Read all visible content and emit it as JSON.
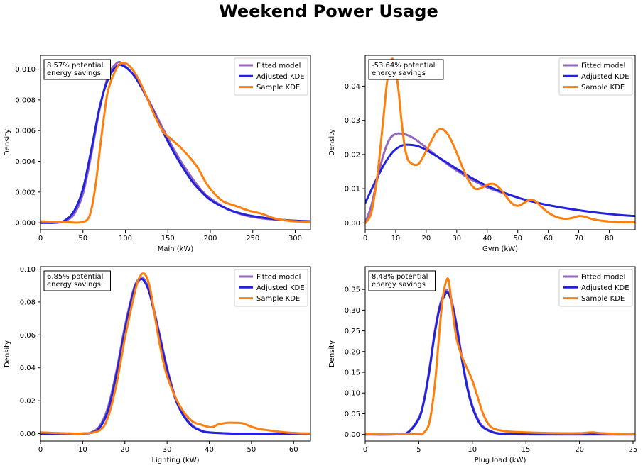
{
  "figure": {
    "title": "Weekend Power Usage"
  },
  "colors": {
    "fitted": "#9467bd",
    "adjusted": "#2222dd",
    "sample": "#ff7f0e"
  },
  "chart_data": [
    {
      "type": "line",
      "xlabel": "Main (kW)",
      "ylabel": "Density",
      "xlim": [
        0,
        318
      ],
      "ylim": [
        -0.00045,
        0.0109
      ],
      "xticks": [
        0,
        50,
        100,
        150,
        200,
        250,
        300
      ],
      "xtick_labels": [
        "0",
        "50",
        "100",
        "150",
        "200",
        "250",
        "300"
      ],
      "yticks": [
        0,
        0.002,
        0.004,
        0.006,
        0.008,
        0.01
      ],
      "ytick_labels": [
        "0.000",
        "0.002",
        "0.004",
        "0.006",
        "0.008",
        "0.010"
      ],
      "annotation": [
        "8.57% potential",
        "energy savings"
      ],
      "legend": [
        "Fitted model",
        "Adjusted KDE",
        "Sample KDE"
      ],
      "series": [
        {
          "name": "Fitted model",
          "color": "#9467bd",
          "x": [
            0,
            20,
            30,
            40,
            50,
            60,
            70,
            80,
            90,
            96,
            100,
            110,
            120,
            130,
            140,
            150,
            160,
            170,
            180,
            190,
            200,
            220,
            240,
            260,
            280,
            300,
            318
          ],
          "y": [
            0,
            1e-05,
            0.00015,
            0.0006,
            0.0019,
            0.0045,
            0.0075,
            0.0096,
            0.0104,
            0.0104,
            0.0102,
            0.0096,
            0.0087,
            0.0077,
            0.0066,
            0.0055,
            0.0045,
            0.0036,
            0.0028,
            0.0021,
            0.0016,
            0.0009,
            0.0005,
            0.0003,
            0.0002,
            0.00012,
            8e-05
          ]
        },
        {
          "name": "Adjusted KDE",
          "color": "#2222dd",
          "x": [
            0,
            20,
            30,
            40,
            50,
            60,
            70,
            80,
            90,
            98,
            110,
            120,
            130,
            140,
            150,
            160,
            170,
            180,
            190,
            200,
            220,
            240,
            260,
            280,
            300,
            318
          ],
          "y": [
            0,
            2e-05,
            0.0002,
            0.0008,
            0.0022,
            0.0048,
            0.0076,
            0.0094,
            0.0102,
            0.0102,
            0.0096,
            0.0087,
            0.0076,
            0.0064,
            0.0053,
            0.0043,
            0.0034,
            0.0026,
            0.002,
            0.0015,
            0.0009,
            0.00055,
            0.00035,
            0.00022,
            0.00014,
            0.0001
          ]
        },
        {
          "name": "Sample KDE",
          "color": "#ff7f0e",
          "x": [
            0,
            30,
            45,
            55,
            60,
            65,
            70,
            75,
            80,
            90,
            97,
            105,
            115,
            125,
            135,
            145,
            155,
            165,
            175,
            185,
            195,
            205,
            215,
            230,
            245,
            260,
            275,
            290,
            305,
            318
          ],
          "y": [
            0.0001,
            5e-05,
            2e-05,
            0.0002,
            0.0009,
            0.0025,
            0.0048,
            0.007,
            0.0087,
            0.0101,
            0.0104,
            0.0102,
            0.0094,
            0.0082,
            0.0069,
            0.0059,
            0.0054,
            0.0049,
            0.0043,
            0.0036,
            0.0026,
            0.0019,
            0.0014,
            0.0011,
            0.0008,
            0.0006,
            0.0003,
            0.00015,
            8e-05,
            5e-05
          ]
        }
      ]
    },
    {
      "type": "line",
      "xlabel": "Gym (kW)",
      "ylabel": "Density",
      "xlim": [
        0,
        88.5
      ],
      "ylim": [
        -0.002,
        0.049
      ],
      "xticks": [
        0,
        10,
        20,
        30,
        40,
        50,
        60,
        70,
        80
      ],
      "xtick_labels": [
        "0",
        "10",
        "20",
        "30",
        "40",
        "50",
        "60",
        "70",
        "80"
      ],
      "yticks": [
        0,
        0.01,
        0.02,
        0.03,
        0.04
      ],
      "ytick_labels": [
        "0.00",
        "0.01",
        "0.02",
        "0.03",
        "0.04"
      ],
      "annotation": [
        "-53.64% potential",
        "energy savings"
      ],
      "legend": [
        "Fitted model",
        "Adjusted KDE",
        "Sample KDE"
      ],
      "series": [
        {
          "name": "Fitted model",
          "color": "#9467bd",
          "x": [
            0,
            2,
            4,
            6,
            8,
            10,
            12,
            14,
            16,
            18,
            20,
            25,
            30,
            35,
            40,
            45,
            50
          ],
          "y": [
            0,
            0.005,
            0.013,
            0.02,
            0.0245,
            0.026,
            0.0261,
            0.0256,
            0.0247,
            0.0234,
            0.022,
            0.0185,
            0.0153,
            0.0126,
            0.0104,
            0.0088,
            0.0075
          ]
        },
        {
          "name": "Adjusted KDE",
          "color": "#2222dd",
          "x": [
            0,
            3,
            6,
            9,
            12,
            15,
            18,
            21,
            24,
            27,
            30,
            35,
            40,
            45,
            50,
            55,
            60,
            65,
            70,
            75,
            80,
            85,
            88.5
          ],
          "y": [
            0.0058,
            0.0115,
            0.0168,
            0.0207,
            0.0226,
            0.0228,
            0.0222,
            0.0208,
            0.0192,
            0.0175,
            0.0158,
            0.0131,
            0.0108,
            0.009,
            0.0074,
            0.0062,
            0.0052,
            0.0044,
            0.0037,
            0.0031,
            0.0026,
            0.0022,
            0.002
          ]
        },
        {
          "name": "Sample KDE",
          "color": "#ff7f0e",
          "x": [
            0,
            2,
            4,
            6,
            7,
            8,
            9,
            10,
            11,
            12,
            13,
            14,
            15,
            16,
            17,
            18,
            20,
            22,
            23,
            24,
            25,
            26,
            27,
            28,
            30,
            32,
            34,
            36,
            38,
            40,
            42,
            44,
            46,
            48,
            50,
            52,
            54,
            56,
            58,
            60,
            62,
            64,
            66,
            68,
            70,
            72,
            75,
            80,
            85,
            88.5
          ],
          "y": [
            0,
            0.003,
            0.014,
            0.031,
            0.04,
            0.046,
            0.048,
            0.045,
            0.038,
            0.029,
            0.022,
            0.0185,
            0.0175,
            0.017,
            0.017,
            0.0178,
            0.021,
            0.0245,
            0.0262,
            0.0272,
            0.0275,
            0.027,
            0.026,
            0.0245,
            0.0205,
            0.016,
            0.0122,
            0.01,
            0.0102,
            0.0112,
            0.0114,
            0.0102,
            0.008,
            0.0058,
            0.005,
            0.0058,
            0.0068,
            0.0062,
            0.0045,
            0.003,
            0.002,
            0.0014,
            0.0012,
            0.0015,
            0.002,
            0.0018,
            0.001,
            0.0004,
            0.0002,
            0.0002
          ]
        }
      ]
    },
    {
      "type": "line",
      "xlabel": "Lighting (kW)",
      "ylabel": "Density",
      "xlim": [
        0,
        64
      ],
      "ylim": [
        -0.0045,
        0.1015
      ],
      "xticks": [
        0,
        10,
        20,
        30,
        40,
        50,
        60
      ],
      "xtick_labels": [
        "0",
        "10",
        "20",
        "30",
        "40",
        "50",
        "60"
      ],
      "yticks": [
        0,
        0.02,
        0.04,
        0.06,
        0.08,
        0.1
      ],
      "ytick_labels": [
        "0.00",
        "0.02",
        "0.04",
        "0.06",
        "0.08",
        "0.10"
      ],
      "annotation": [
        "6.85% potential",
        "energy savings"
      ],
      "legend": [
        "Fitted model",
        "Adjusted KDE",
        "Sample KDE"
      ],
      "series": [
        {
          "name": "Fitted model",
          "color": "#9467bd",
          "x": [
            0,
            10,
            12,
            14,
            16,
            18,
            20,
            22,
            23,
            24,
            25,
            26,
            28,
            30,
            32,
            34,
            36,
            38,
            40,
            45,
            50,
            60,
            64
          ],
          "y": [
            0,
            0.0001,
            0.0008,
            0.0045,
            0.016,
            0.038,
            0.065,
            0.087,
            0.093,
            0.095,
            0.092,
            0.085,
            0.063,
            0.04,
            0.022,
            0.011,
            0.005,
            0.002,
            0.0008,
            0.0001,
            0,
            0,
            0
          ]
        },
        {
          "name": "Adjusted KDE",
          "color": "#2222dd",
          "x": [
            0,
            10,
            12,
            14,
            16,
            18,
            20,
            22,
            23,
            24,
            25,
            26,
            28,
            30,
            32,
            34,
            36,
            38,
            40,
            45,
            50,
            60,
            64
          ],
          "y": [
            0,
            0.0001,
            0.0006,
            0.0035,
            0.014,
            0.036,
            0.063,
            0.086,
            0.092,
            0.094,
            0.091,
            0.084,
            0.062,
            0.039,
            0.021,
            0.0105,
            0.0045,
            0.0018,
            0.0007,
            0.0001,
            0,
            0,
            0
          ]
        },
        {
          "name": "Sample KDE",
          "color": "#ff7f0e",
          "x": [
            0,
            5,
            10,
            14,
            16,
            18,
            20,
            22,
            23,
            24,
            25,
            26,
            27,
            28,
            29,
            30,
            32,
            34,
            36,
            38,
            40,
            41,
            42,
            44,
            46,
            48,
            50,
            52,
            55,
            58,
            61,
            64
          ],
          "y": [
            0.0008,
            0.0003,
            0.0001,
            0.002,
            0.01,
            0.03,
            0.058,
            0.082,
            0.092,
            0.097,
            0.096,
            0.088,
            0.073,
            0.058,
            0.045,
            0.035,
            0.022,
            0.013,
            0.0075,
            0.0055,
            0.004,
            0.0042,
            0.0055,
            0.0065,
            0.0066,
            0.0062,
            0.0042,
            0.0028,
            0.0017,
            0.0008,
            0.0003,
            0.0001
          ]
        }
      ]
    },
    {
      "type": "line",
      "xlabel": "Plug load (kW)",
      "ylabel": "Density",
      "xlim": [
        0,
        25.2
      ],
      "ylim": [
        -0.016,
        0.405
      ],
      "xticks": [
        0,
        5,
        10,
        15,
        20,
        25
      ],
      "xtick_labels": [
        "0",
        "5",
        "10",
        "15",
        "20",
        "25"
      ],
      "yticks": [
        0,
        0.05,
        0.1,
        0.15,
        0.2,
        0.25,
        0.3,
        0.35
      ],
      "ytick_labels": [
        "0.00",
        "0.05",
        "0.10",
        "0.15",
        "0.20",
        "0.25",
        "0.30",
        "0.35"
      ],
      "annotation": [
        "8.48% potential",
        "energy savings"
      ],
      "legend": [
        "Fitted model",
        "Adjusted KDE",
        "Sample KDE"
      ],
      "series": [
        {
          "name": "Fitted model",
          "color": "#9467bd",
          "x": [
            0,
            3,
            4,
            5,
            5.5,
            6,
            6.5,
            7,
            7.5,
            7.7,
            8,
            8.5,
            9,
            9.5,
            10,
            10.5,
            11,
            12,
            13,
            14,
            16,
            20,
            25.2
          ],
          "y": [
            0,
            0.0005,
            0.006,
            0.04,
            0.085,
            0.16,
            0.25,
            0.315,
            0.345,
            0.346,
            0.33,
            0.27,
            0.19,
            0.12,
            0.07,
            0.038,
            0.019,
            0.005,
            0.0013,
            0.0003,
            0,
            0,
            0
          ]
        },
        {
          "name": "Adjusted KDE",
          "color": "#2222dd",
          "x": [
            0,
            3,
            4,
            5,
            5.5,
            6,
            6.5,
            7,
            7.5,
            7.7,
            8,
            8.5,
            9,
            9.5,
            10,
            10.5,
            11,
            12,
            13,
            14,
            16,
            20,
            25.2
          ],
          "y": [
            0,
            0.0004,
            0.005,
            0.037,
            0.082,
            0.155,
            0.245,
            0.31,
            0.34,
            0.342,
            0.325,
            0.265,
            0.185,
            0.115,
            0.066,
            0.035,
            0.017,
            0.0045,
            0.001,
            0.0002,
            0,
            0,
            0
          ]
        },
        {
          "name": "Sample KDE",
          "color": "#ff7f0e",
          "x": [
            0,
            1,
            3,
            5,
            5.5,
            6,
            6.5,
            7,
            7.3,
            7.6,
            7.8,
            8.1,
            8.5,
            9,
            9.5,
            10,
            10.5,
            11,
            11.5,
            12,
            13,
            14,
            15,
            16,
            18,
            20,
            21.2,
            22,
            24,
            25.2
          ],
          "y": [
            0.002,
            0.001,
            0.0005,
            0.001,
            0.005,
            0.03,
            0.12,
            0.27,
            0.34,
            0.372,
            0.37,
            0.31,
            0.235,
            0.19,
            0.16,
            0.13,
            0.09,
            0.05,
            0.025,
            0.014,
            0.008,
            0.006,
            0.005,
            0.004,
            0.003,
            0.003,
            0.005,
            0.003,
            0.001,
            0.0005
          ]
        }
      ]
    }
  ]
}
